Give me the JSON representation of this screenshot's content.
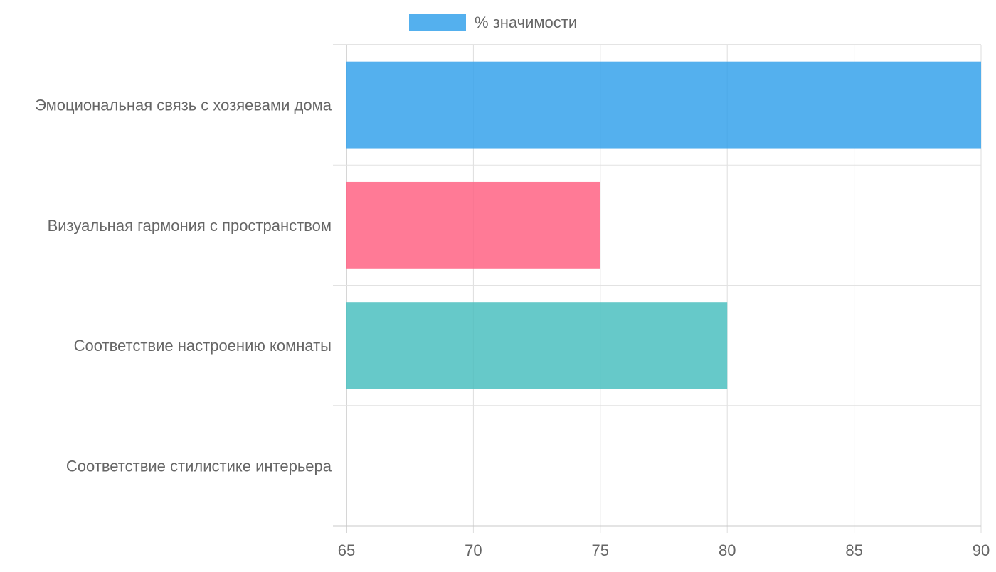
{
  "chart_data": {
    "type": "bar",
    "orientation": "horizontal",
    "categories": [
      "Эмоциональная связь с хозяевами дома",
      "Визуальная гармония с пространством",
      "Соответствие настроению комнаты",
      "Соответствие стилистике интерьера"
    ],
    "series": [
      {
        "name": "% значимости",
        "values": [
          90,
          75,
          80,
          65
        ]
      }
    ],
    "bar_colors": [
      "#36a2eb",
      "#ff6384",
      "#4bc0c0",
      "#ff9f40"
    ],
    "xlim": [
      65,
      90
    ],
    "x_ticks": [
      "65",
      "70",
      "75",
      "80",
      "85",
      "90"
    ],
    "grid": true,
    "legend_position": "top"
  }
}
